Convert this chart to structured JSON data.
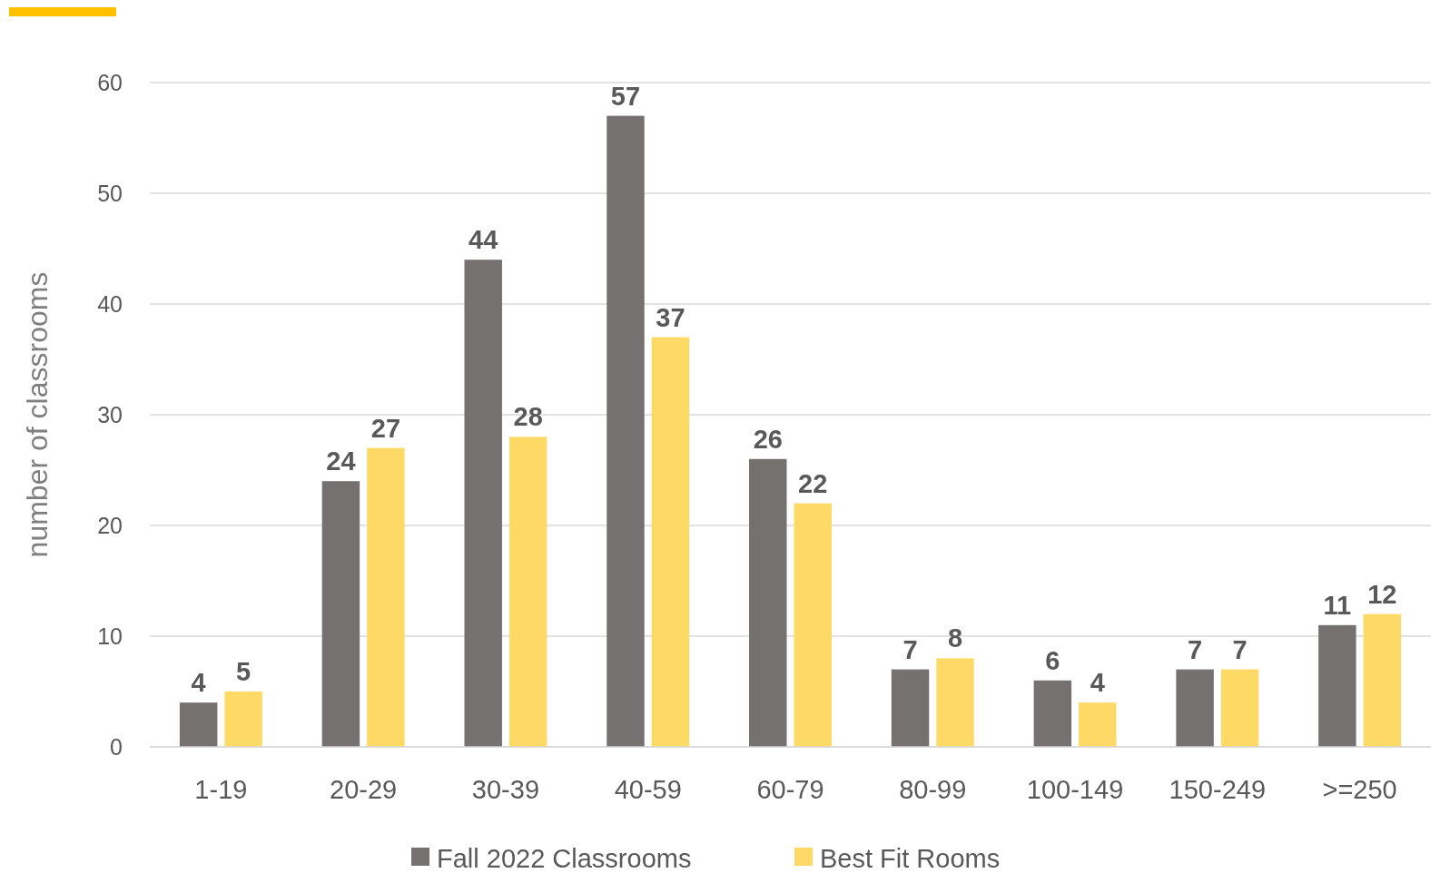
{
  "chart_data": {
    "type": "bar",
    "ylabel": "number of classrooms",
    "categories": [
      "1-19",
      "20-29",
      "30-39",
      "40-59",
      "60-79",
      "80-99",
      "100-149",
      "150-249",
      ">=250"
    ],
    "series": [
      {
        "name": "Fall 2022 Classrooms",
        "color": "#767171",
        "values": [
          4,
          24,
          44,
          57,
          26,
          7,
          6,
          7,
          11
        ]
      },
      {
        "name": "Best Fit Rooms",
        "color": "#ffd966",
        "values": [
          5,
          27,
          28,
          37,
          22,
          8,
          4,
          7,
          12
        ]
      }
    ],
    "ylim": [
      0,
      60
    ],
    "yticks": [
      0,
      10,
      20,
      30,
      40,
      50,
      60
    ],
    "grid": "y",
    "data_labels": true,
    "legend": "bottom"
  }
}
